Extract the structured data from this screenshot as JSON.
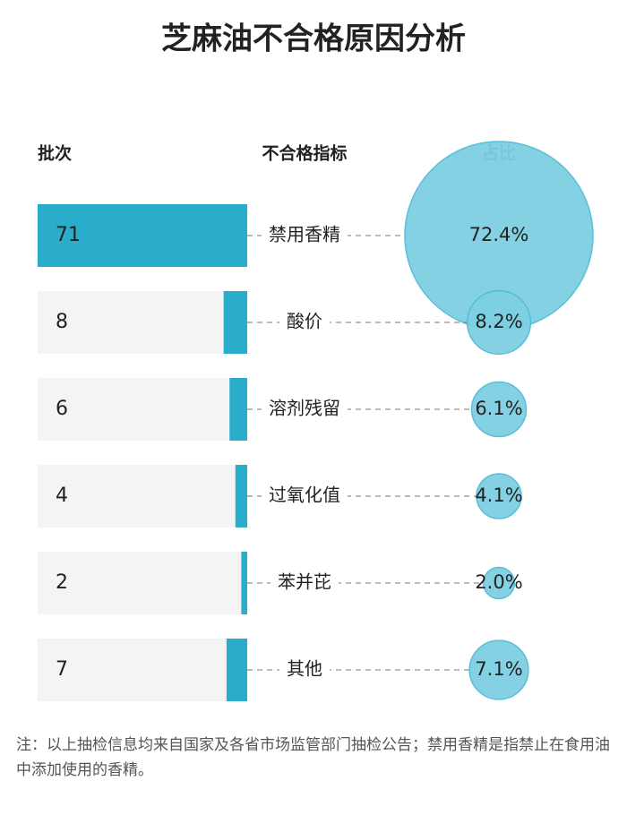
{
  "chart_data": {
    "type": "bar",
    "title": "芝麻油不合格原因分析",
    "headers": [
      "批次",
      "不合格指标",
      "占比"
    ],
    "categories": [
      "禁用香精",
      "酸价",
      "溶剂残留",
      "过氧化值",
      "苯并芘",
      "其他"
    ],
    "values": [
      71,
      8,
      6,
      4,
      2,
      7
    ],
    "shares": [
      72.4,
      8.2,
      6.1,
      4.1,
      2.0,
      7.1
    ],
    "share_labels": [
      "72.4%",
      "8.2%",
      "6.1%",
      "4.1%",
      "2.0%",
      "7.1%"
    ],
    "color": "#2aaccb",
    "share_color": "#7dcfe2",
    "note": "注：以上抽检信息均来自国家及各省市场监管部门抽检公告；禁用香精是指禁止在食用油中添加使用的香精。"
  }
}
